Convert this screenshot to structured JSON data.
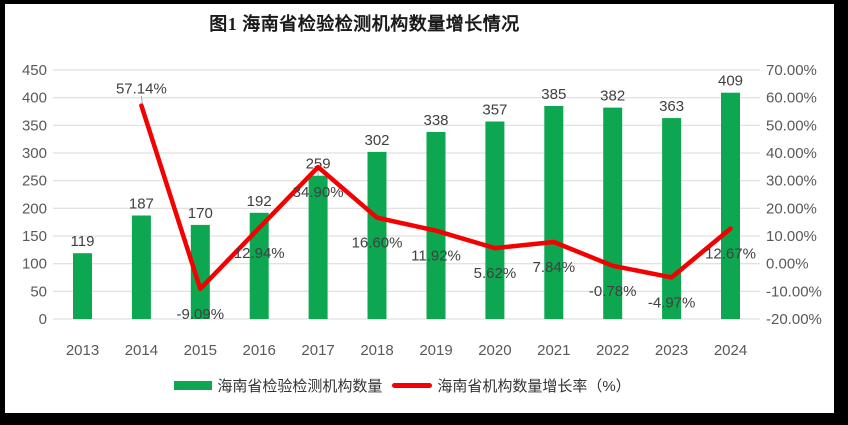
{
  "title": "图1 海南省检验检测机构数量增长情况",
  "chart_data": {
    "type": "bar+line",
    "title": "图1 海南省检验检测机构数量增长情况",
    "categories": [
      "2013",
      "2014",
      "2015",
      "2016",
      "2017",
      "2018",
      "2019",
      "2020",
      "2021",
      "2022",
      "2023",
      "2024"
    ],
    "series": [
      {
        "name": "海南省检验检测机构数量",
        "chart_type": "bar",
        "axis": "left",
        "color": "#0CA750",
        "values": [
          119,
          187,
          170,
          192,
          259,
          302,
          338,
          357,
          385,
          382,
          363,
          409
        ],
        "data_labels": [
          "119",
          "187",
          "170",
          "192",
          "259",
          "302",
          "338",
          "357",
          "385",
          "382",
          "363",
          "409"
        ]
      },
      {
        "name": "海南省机构数量增长率（%）",
        "chart_type": "line",
        "axis": "right",
        "color": "#F40000",
        "values": [
          null,
          57.14,
          -9.09,
          12.94,
          34.9,
          16.6,
          11.92,
          5.62,
          7.84,
          -0.78,
          -4.97,
          12.67
        ],
        "data_labels": [
          null,
          "57.14%",
          "-9.09%",
          "12.94%",
          "34.90%",
          "16.60%",
          "11.92%",
          "5.62%",
          "7.84%",
          "-0.78%",
          "-4.97%",
          "12.67%"
        ]
      }
    ],
    "left_axis": {
      "min": 0,
      "max": 450,
      "step": 50,
      "tick_labels": [
        "450",
        "400",
        "350",
        "300",
        "250",
        "200",
        "150",
        "100",
        "50",
        "0"
      ]
    },
    "right_axis": {
      "min": -20,
      "max": 70,
      "step": 10,
      "tick_labels": [
        "70.00%",
        "60.00%",
        "50.00%",
        "40.00%",
        "30.00%",
        "20.00%",
        "10.00%",
        "0.00%",
        "-10.00%",
        "-20.00%"
      ]
    },
    "grid": true,
    "legend_position": "bottom"
  },
  "colors": {
    "bar": "#0CA750",
    "line": "#F40000",
    "grid": "#D9D9D9",
    "tick_text": "#595959",
    "label_text": "#404040",
    "leader": "#A6A6A6",
    "frame": "#000000",
    "background": "#FFFFFF"
  }
}
